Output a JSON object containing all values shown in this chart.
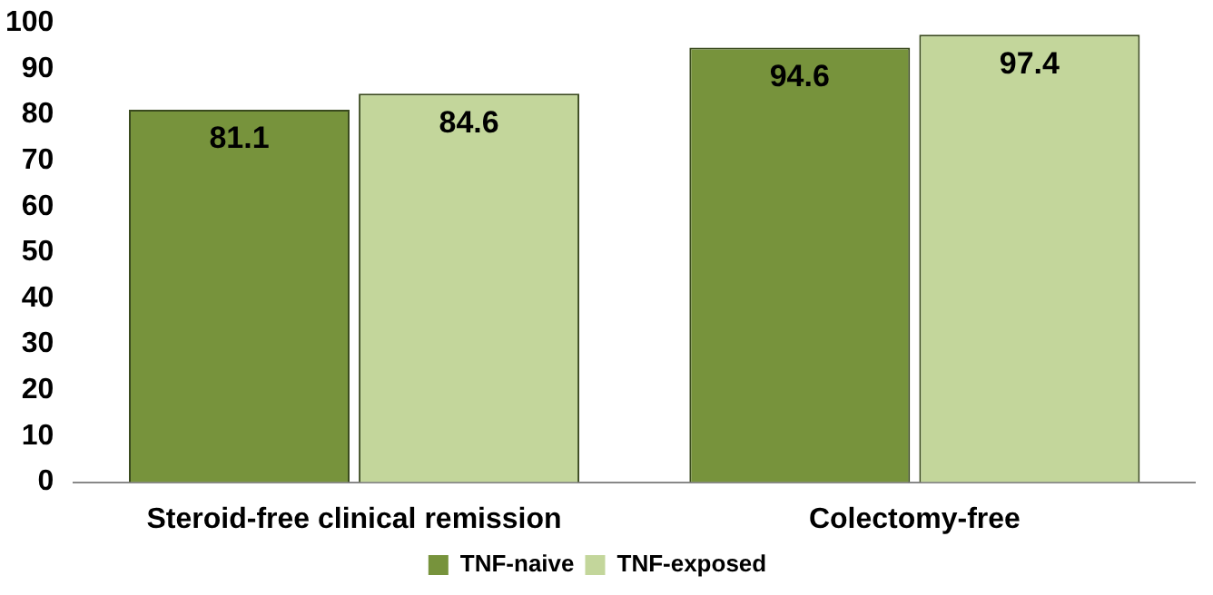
{
  "chart_data": {
    "type": "bar",
    "categories": [
      "Steroid-free clinical remission",
      "Colectomy-free"
    ],
    "series": [
      {
        "name": "TNF-naive",
        "color": "#77933c",
        "values": [
          81.1,
          94.6
        ]
      },
      {
        "name": "TNF-exposed",
        "color": "#c3d69b",
        "values": [
          84.6,
          97.4
        ]
      }
    ],
    "ylim": [
      0,
      100
    ],
    "yticks": [
      0,
      10,
      20,
      30,
      40,
      50,
      60,
      70,
      80,
      90,
      100
    ],
    "grid": false,
    "legend": "bottom",
    "data_labels": true
  }
}
